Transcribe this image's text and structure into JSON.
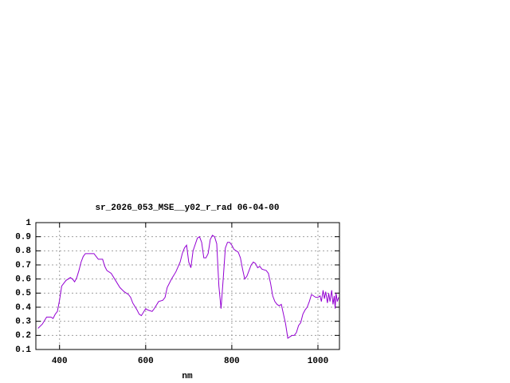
{
  "chart_data": {
    "type": "line",
    "title": "sr_2026_053_MSE__y02_r_rad 06-04-00",
    "xlabel": "nm",
    "color": "#9400d3",
    "grid": true,
    "xlim": [
      345,
      1050
    ],
    "ylim": [
      0.1,
      1
    ],
    "xticks": [
      400,
      600,
      800,
      1000
    ],
    "yticks": [
      0.1,
      0.2,
      0.3,
      0.4,
      0.5,
      0.6,
      0.7,
      0.8,
      0.9,
      1
    ],
    "x": [
      350,
      360,
      370,
      380,
      385,
      390,
      395,
      400,
      405,
      415,
      425,
      430,
      435,
      440,
      445,
      450,
      455,
      460,
      470,
      480,
      485,
      490,
      495,
      500,
      505,
      510,
      520,
      530,
      540,
      550,
      560,
      565,
      570,
      580,
      585,
      590,
      600,
      605,
      615,
      620,
      630,
      640,
      645,
      650,
      660,
      670,
      680,
      685,
      690,
      695,
      700,
      705,
      710,
      720,
      725,
      730,
      735,
      740,
      745,
      750,
      755,
      760,
      765,
      770,
      775,
      780,
      785,
      790,
      795,
      800,
      805,
      810,
      815,
      820,
      825,
      830,
      835,
      840,
      845,
      850,
      855,
      860,
      865,
      870,
      880,
      885,
      890,
      895,
      900,
      905,
      910,
      915,
      920,
      925,
      930,
      935,
      940,
      945,
      950,
      955,
      960,
      965,
      970,
      975,
      980,
      985,
      990,
      995,
      1000,
      1005,
      1008,
      1012,
      1015,
      1018,
      1022,
      1025,
      1028,
      1032,
      1035,
      1038,
      1040,
      1042,
      1045,
      1048
    ],
    "values": [
      0.25,
      0.28,
      0.33,
      0.33,
      0.32,
      0.35,
      0.37,
      0.45,
      0.55,
      0.59,
      0.61,
      0.6,
      0.58,
      0.61,
      0.66,
      0.72,
      0.76,
      0.78,
      0.78,
      0.78,
      0.76,
      0.74,
      0.74,
      0.74,
      0.69,
      0.66,
      0.64,
      0.59,
      0.54,
      0.51,
      0.49,
      0.47,
      0.43,
      0.38,
      0.35,
      0.34,
      0.39,
      0.38,
      0.37,
      0.39,
      0.44,
      0.45,
      0.47,
      0.54,
      0.6,
      0.65,
      0.72,
      0.78,
      0.82,
      0.84,
      0.72,
      0.68,
      0.8,
      0.89,
      0.9,
      0.86,
      0.75,
      0.75,
      0.78,
      0.88,
      0.91,
      0.9,
      0.85,
      0.55,
      0.39,
      0.6,
      0.82,
      0.86,
      0.86,
      0.84,
      0.81,
      0.8,
      0.79,
      0.75,
      0.67,
      0.6,
      0.62,
      0.66,
      0.7,
      0.72,
      0.71,
      0.68,
      0.69,
      0.67,
      0.66,
      0.64,
      0.57,
      0.48,
      0.44,
      0.42,
      0.41,
      0.42,
      0.35,
      0.28,
      0.18,
      0.19,
      0.2,
      0.2,
      0.22,
      0.27,
      0.29,
      0.35,
      0.38,
      0.4,
      0.44,
      0.49,
      0.48,
      0.47,
      0.47,
      0.48,
      0.44,
      0.52,
      0.46,
      0.51,
      0.43,
      0.5,
      0.44,
      0.52,
      0.42,
      0.48,
      0.39,
      0.5,
      0.44,
      0.47
    ]
  }
}
